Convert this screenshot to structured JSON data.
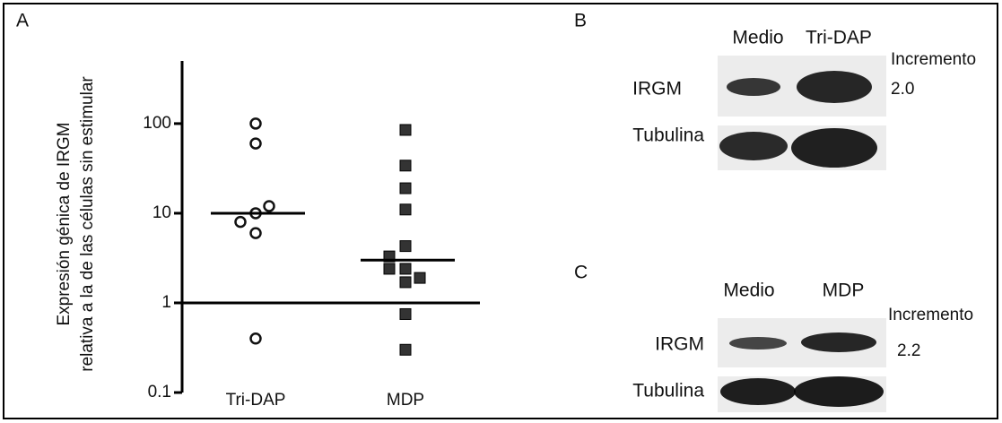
{
  "chart_data": {
    "type": "dotplot",
    "panel_label": "A",
    "ylabel": [
      "Expresión génica de IRGM",
      "relativa a la de las células sin estimular"
    ],
    "ylim": [
      0.1,
      500
    ],
    "log_y": true,
    "yticks": [
      0.1,
      1,
      10,
      100
    ],
    "reference_line": 1,
    "categories": [
      "Tri-DAP",
      "MDP"
    ],
    "groups": [
      {
        "marker": "open-circle",
        "color": "#111111",
        "values": [
          100,
          60,
          12,
          10,
          8,
          6,
          0.4
        ],
        "median": 10
      },
      {
        "marker": "filled-square",
        "color": "#333333",
        "values": [
          85,
          34,
          19,
          11,
          4.3,
          3.3,
          2.4,
          2.4,
          1.9,
          1.7,
          0.75,
          0.3
        ],
        "median": 3
      }
    ]
  },
  "blots": [
    {
      "panel_label": "B",
      "lanes": [
        "Medio",
        "Tri-DAP"
      ],
      "rows": [
        "IRGM",
        "Tubulina"
      ],
      "fold_label": "Incremento",
      "fold_value": "2.0"
    },
    {
      "panel_label": "C",
      "lanes": [
        "Medio",
        "MDP"
      ],
      "rows": [
        "IRGM",
        "Tubulina"
      ],
      "fold_label": "Incremento",
      "fold_value": "2.2"
    }
  ]
}
